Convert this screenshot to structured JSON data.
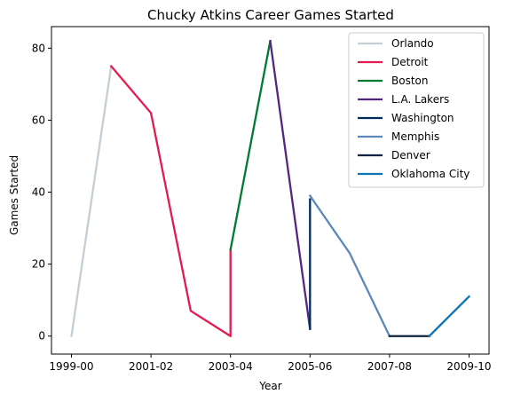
{
  "chart_data": {
    "type": "line",
    "title": "Chucky Atkins Career Games Started",
    "xlabel": "Year",
    "ylabel": "Games Started",
    "x_categories": [
      "1999-00",
      "2000-01",
      "2001-02",
      "2002-03",
      "2003-04",
      "2004-05",
      "2005-06",
      "2006-07",
      "2007-08",
      "2008-09",
      "2009-10"
    ],
    "x_tick_labels": [
      "1999-00",
      "2001-02",
      "2003-04",
      "2005-06",
      "2007-08",
      "2009-10"
    ],
    "y_ticks": [
      0,
      20,
      40,
      60,
      80
    ],
    "ylim": [
      -5,
      86
    ],
    "grid": false,
    "legend_position": "top-right",
    "series": [
      {
        "name": "Orlando",
        "color": "#c4ced4",
        "x": [
          "1999-00",
          "2000-01"
        ],
        "values": [
          0,
          75
        ]
      },
      {
        "name": "Detroit",
        "color": "#e31b4f",
        "x": [
          "2000-01",
          "2001-02",
          "2002-03",
          "2003-04",
          "2003-04"
        ],
        "values": [
          75,
          62,
          7,
          0,
          24
        ]
      },
      {
        "name": "Boston",
        "color": "#007a33",
        "x": [
          "2003-04",
          "2004-05"
        ],
        "values": [
          24,
          82
        ]
      },
      {
        "name": "L.A. Lakers",
        "color": "#552583",
        "x": [
          "2004-05",
          "2005-06"
        ],
        "values": [
          82,
          2
        ]
      },
      {
        "name": "Washington",
        "color": "#002b5c",
        "x": [
          "2005-06",
          "2005-06"
        ],
        "values": [
          2,
          38
        ]
      },
      {
        "name": "Memphis",
        "color": "#5d89ba",
        "x": [
          "2005-06",
          "2006-07",
          "2007-08"
        ],
        "values": [
          39,
          23,
          0
        ]
      },
      {
        "name": "Denver",
        "color": "#0e2240",
        "x": [
          "2007-08",
          "2008-09"
        ],
        "values": [
          0,
          0
        ]
      },
      {
        "name": "Oklahoma City",
        "color": "#0c74b7",
        "x": [
          "2008-09",
          "2009-10"
        ],
        "values": [
          0,
          11
        ]
      }
    ]
  }
}
